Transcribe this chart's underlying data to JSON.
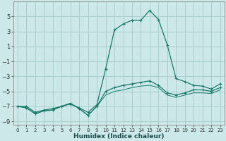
{
  "x": [
    0,
    1,
    2,
    3,
    4,
    5,
    6,
    7,
    8,
    9,
    10,
    11,
    12,
    13,
    14,
    15,
    16,
    17,
    18,
    19,
    20,
    21,
    22,
    23
  ],
  "line1": [
    -7.0,
    -7.0,
    -7.8,
    -7.5,
    -7.3,
    -7.0,
    -6.7,
    -7.2,
    -7.8,
    -6.8,
    -2.0,
    3.2,
    4.0,
    4.5,
    4.5,
    5.8,
    4.6,
    1.2,
    -3.3,
    -3.7,
    -4.2,
    -4.3,
    -4.7,
    -4.0
  ],
  "line2": [
    -7.0,
    -7.2,
    -8.0,
    -7.6,
    -7.5,
    -7.0,
    -6.6,
    -7.3,
    -8.2,
    -7.0,
    -5.0,
    -4.5,
    -4.2,
    -4.0,
    -3.8,
    -3.6,
    -4.2,
    -5.2,
    -5.5,
    -5.2,
    -4.8,
    -4.8,
    -5.0,
    -4.5
  ],
  "line3": [
    -7.0,
    -7.2,
    -8.0,
    -7.6,
    -7.5,
    -7.0,
    -6.6,
    -7.3,
    -8.2,
    -7.0,
    -5.5,
    -5.0,
    -4.8,
    -4.5,
    -4.3,
    -4.2,
    -4.5,
    -5.5,
    -5.8,
    -5.5,
    -5.2,
    -5.2,
    -5.3,
    -4.8
  ],
  "bg_color": "#cce8e8",
  "grid_color": "#aacfcf",
  "line_color": "#1a7a6a",
  "xlabel": "Humidex (Indice chaleur)",
  "ylim": [
    -9.5,
    7.0
  ],
  "xlim": [
    -0.5,
    23.5
  ],
  "yticks": [
    -9,
    -7,
    -5,
    -3,
    -1,
    1,
    3,
    5
  ],
  "xtick_labels": [
    "0",
    "1",
    "2",
    "3",
    "4",
    "5",
    "6",
    "7",
    "8",
    "9",
    "10",
    "11",
    "12",
    "13",
    "14",
    "15",
    "16",
    "17",
    "18",
    "19",
    "20",
    "21",
    "22",
    "23"
  ]
}
